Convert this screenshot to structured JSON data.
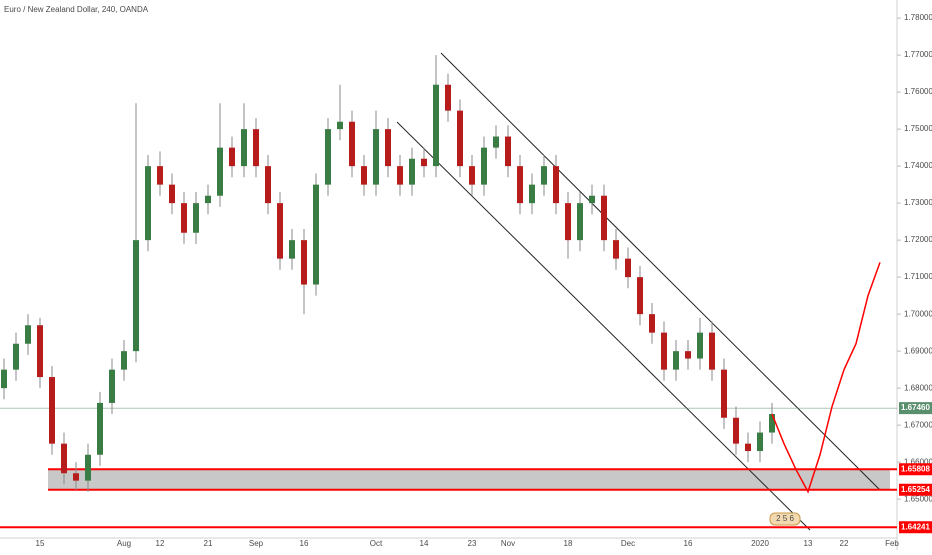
{
  "chart_data": {
    "type": "candlestick",
    "title": "Euro / New Zealand Dollar, 240, OANDA",
    "categories": [
      null,
      null,
      null,
      "15",
      null,
      null,
      null,
      null,
      null,
      null,
      "Aug",
      null,
      null,
      "12",
      null,
      null,
      null,
      "21",
      null,
      null,
      null,
      "Sep",
      null,
      null,
      null,
      "16",
      null,
      null,
      null,
      null,
      null,
      "Oct",
      null,
      null,
      null,
      "14",
      null,
      null,
      null,
      "23",
      null,
      null,
      "Nov",
      null,
      null,
      null,
      null,
      "18",
      null,
      null,
      null,
      null,
      "Dec",
      null,
      null,
      null,
      null,
      "16",
      null,
      null,
      null,
      null,
      null,
      "2020",
      null,
      null,
      null,
      "13",
      null,
      null,
      "22",
      null,
      null,
      null,
      "Feb"
    ],
    "open": [
      1.68,
      1.685,
      1.692,
      1.697,
      1.683,
      1.665,
      1.657,
      1.655,
      1.662,
      1.676,
      1.685,
      1.69,
      1.72,
      1.74,
      1.735,
      1.73,
      1.722,
      1.73,
      1.732,
      1.745,
      1.74,
      1.75,
      1.74,
      1.73,
      1.715,
      1.72,
      1.708,
      1.735,
      1.75,
      1.752,
      1.74,
      1.735,
      1.75,
      1.74,
      1.735,
      1.742,
      1.74,
      1.762,
      1.755,
      1.74,
      1.735,
      1.745,
      1.748,
      1.74,
      1.73,
      1.735,
      1.74,
      1.73,
      1.72,
      1.73,
      1.732,
      1.72,
      1.715,
      1.71,
      1.7,
      1.695,
      1.685,
      1.69,
      1.688,
      1.695,
      1.685,
      1.672,
      1.665,
      1.663,
      1.668,
      null,
      null,
      null,
      null,
      null,
      null,
      null,
      null,
      null,
      null
    ],
    "high": [
      1.688,
      1.695,
      1.7,
      1.699,
      1.686,
      1.668,
      1.66,
      1.665,
      1.679,
      1.688,
      1.693,
      1.757,
      1.743,
      1.744,
      1.738,
      1.733,
      1.733,
      1.735,
      1.757,
      1.748,
      1.757,
      1.753,
      1.743,
      1.733,
      1.723,
      1.723,
      1.738,
      1.753,
      1.762,
      1.755,
      1.743,
      1.755,
      1.753,
      1.743,
      1.745,
      1.745,
      1.77,
      1.765,
      1.758,
      1.743,
      1.748,
      1.751,
      1.751,
      1.743,
      1.738,
      1.743,
      1.743,
      1.733,
      1.733,
      1.735,
      1.735,
      1.723,
      1.718,
      1.713,
      1.703,
      1.698,
      1.693,
      1.693,
      1.699,
      1.698,
      1.688,
      1.675,
      1.668,
      1.671,
      1.676,
      null,
      null,
      null,
      null,
      null,
      null,
      null,
      null,
      null,
      null
    ],
    "low": [
      1.677,
      1.682,
      1.689,
      1.68,
      1.662,
      1.654,
      1.6525,
      1.652,
      1.659,
      1.673,
      1.682,
      1.687,
      1.717,
      1.732,
      1.727,
      1.719,
      1.719,
      1.727,
      1.729,
      1.737,
      1.737,
      1.737,
      1.727,
      1.712,
      1.712,
      1.7,
      1.705,
      1.732,
      1.747,
      1.737,
      1.732,
      1.732,
      1.737,
      1.732,
      1.732,
      1.737,
      1.737,
      1.752,
      1.737,
      1.732,
      1.732,
      1.742,
      1.737,
      1.727,
      1.727,
      1.732,
      1.727,
      1.715,
      1.717,
      1.727,
      1.717,
      1.712,
      1.707,
      1.697,
      1.692,
      1.682,
      1.682,
      1.685,
      1.685,
      1.682,
      1.669,
      1.662,
      1.66,
      1.66,
      1.665,
      null,
      null,
      null,
      null,
      null,
      null,
      null,
      null,
      null,
      null
    ],
    "close": [
      1.685,
      1.692,
      1.697,
      1.683,
      1.665,
      1.657,
      1.655,
      1.662,
      1.676,
      1.685,
      1.69,
      1.72,
      1.74,
      1.735,
      1.73,
      1.722,
      1.73,
      1.732,
      1.745,
      1.74,
      1.75,
      1.74,
      1.73,
      1.715,
      1.72,
      1.708,
      1.735,
      1.75,
      1.752,
      1.74,
      1.735,
      1.75,
      1.74,
      1.735,
      1.742,
      1.74,
      1.762,
      1.755,
      1.74,
      1.735,
      1.745,
      1.748,
      1.74,
      1.73,
      1.735,
      1.74,
      1.73,
      1.72,
      1.73,
      1.732,
      1.72,
      1.715,
      1.71,
      1.7,
      1.695,
      1.685,
      1.69,
      1.688,
      1.695,
      1.685,
      1.672,
      1.665,
      1.663,
      1.668,
      1.673,
      null,
      null,
      null,
      null,
      null,
      null,
      null,
      null,
      null,
      null
    ],
    "up_color": "#3a7d44",
    "down_color": "#b71c1c",
    "projection": {
      "color": "#ff0000",
      "values": [
        null,
        null,
        null,
        null,
        null,
        null,
        null,
        null,
        null,
        null,
        null,
        null,
        null,
        null,
        null,
        null,
        null,
        null,
        null,
        null,
        null,
        null,
        null,
        null,
        null,
        null,
        null,
        null,
        null,
        null,
        null,
        null,
        null,
        null,
        null,
        null,
        null,
        null,
        null,
        null,
        null,
        null,
        null,
        null,
        null,
        null,
        null,
        null,
        null,
        null,
        null,
        null,
        null,
        null,
        null,
        null,
        null,
        null,
        null,
        null,
        null,
        null,
        null,
        null,
        1.673,
        1.665,
        1.658,
        1.652,
        1.662,
        1.675,
        1.685,
        1.692,
        1.705,
        1.714,
        null
      ]
    },
    "levels": [
      {
        "value": 1.6746,
        "label": "1.67460",
        "color": "#5a8f6e"
      },
      {
        "value": 1.65808,
        "label": "1.65808",
        "color": "#ff0000"
      },
      {
        "value": 1.65254,
        "label": "1.65254",
        "color": "#ff0000"
      },
      {
        "value": 1.64241,
        "label": "1.64241",
        "color": "#ff0000"
      }
    ],
    "badge": "2 5 6",
    "ylim": [
      1.6395,
      1.7849
    ],
    "yticks": [
      {
        "value": 1.65,
        "label": "1.65000"
      },
      {
        "value": 1.66,
        "label": "1.66000"
      },
      {
        "value": 1.67,
        "label": "1.67000"
      },
      {
        "value": 1.68,
        "label": "1.68000"
      },
      {
        "value": 1.69,
        "label": "1.69000"
      },
      {
        "value": 1.7,
        "label": "1.70000"
      },
      {
        "value": 1.71,
        "label": "1.71000"
      },
      {
        "value": 1.72,
        "label": "1.72000"
      },
      {
        "value": 1.73,
        "label": "1.73000"
      },
      {
        "value": 1.74,
        "label": "1.74000"
      },
      {
        "value": 1.75,
        "label": "1.75000"
      },
      {
        "value": 1.76,
        "label": "1.76000"
      },
      {
        "value": 1.77,
        "label": "1.77000"
      },
      {
        "value": 1.78,
        "label": "1.78000"
      }
    ]
  }
}
